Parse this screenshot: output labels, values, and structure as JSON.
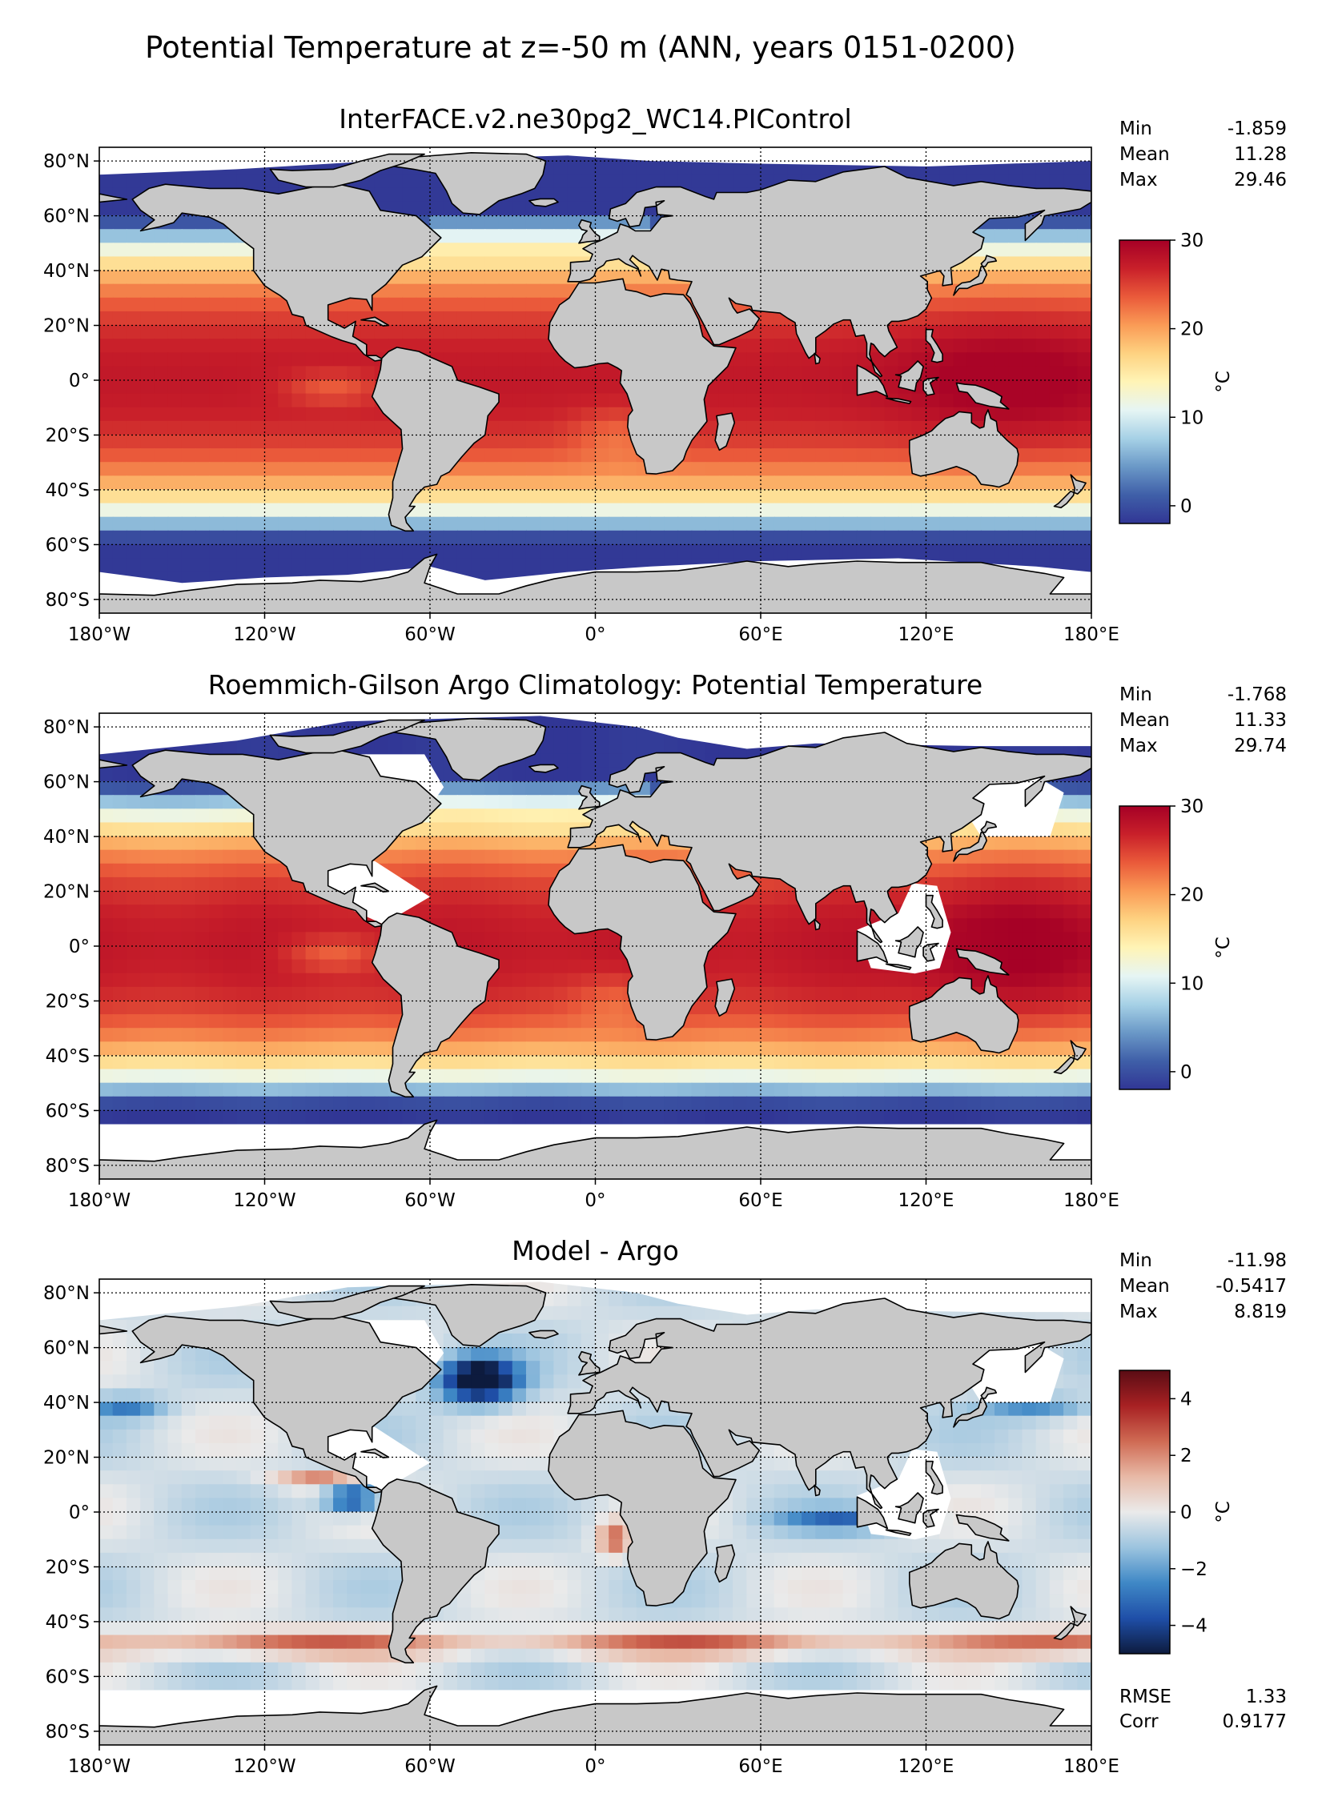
{
  "figure": {
    "title": "Potential Temperature at z=-50 m (ANN, years 0151-0200)"
  },
  "palettes": {
    "temperature": [
      "#313695",
      "#3f5fa8",
      "#6a98c7",
      "#a6d1e6",
      "#e6f5f4",
      "#fff4b6",
      "#fed281",
      "#fa9b56",
      "#ea5a3a",
      "#c9202a",
      "#a50026"
    ],
    "difference": [
      "#0d1b3e",
      "#1f4fa8",
      "#3f88c6",
      "#9cc4df",
      "#eaeaea",
      "#e8b9a6",
      "#cf6a53",
      "#a82123",
      "#5a0c14"
    ],
    "land": "#c8c8c8",
    "nodata": "#ffffff"
  },
  "chart_data": [
    {
      "type": "heatmap",
      "title": "InterFACE.v2.ne30pg2_WC14.PIControl",
      "x_ticks": [
        "180°W",
        "120°W",
        "60°W",
        "0°",
        "60°E",
        "120°E",
        "180°E"
      ],
      "y_ticks": [
        "80°N",
        "60°N",
        "40°N",
        "20°N",
        "0°",
        "20°S",
        "40°S",
        "60°S",
        "80°S"
      ],
      "xlim": [
        -180,
        180
      ],
      "ylim": [
        -85,
        85
      ],
      "stats": [
        {
          "label": "Min",
          "value": "-1.859"
        },
        {
          "label": "Mean",
          "value": "11.28"
        },
        {
          "label": "Max",
          "value": "29.46"
        }
      ],
      "colorbar": {
        "ticks": [
          "30",
          "20",
          "10",
          "0"
        ],
        "tick_values": [
          30,
          20,
          10,
          0
        ],
        "range": [
          -2,
          30
        ],
        "unit": "°C",
        "palette": "temperature"
      },
      "field": "model"
    },
    {
      "type": "heatmap",
      "title": "Roemmich-Gilson Argo Climatology: Potential Temperature",
      "x_ticks": [
        "180°W",
        "120°W",
        "60°W",
        "0°",
        "60°E",
        "120°E",
        "180°E"
      ],
      "y_ticks": [
        "80°N",
        "60°N",
        "40°N",
        "20°N",
        "0°",
        "20°S",
        "40°S",
        "60°S",
        "80°S"
      ],
      "xlim": [
        -180,
        180
      ],
      "ylim": [
        -85,
        85
      ],
      "stats": [
        {
          "label": "Min",
          "value": "-1.768"
        },
        {
          "label": "Mean",
          "value": "11.33"
        },
        {
          "label": "Max",
          "value": "29.74"
        }
      ],
      "colorbar": {
        "ticks": [
          "30",
          "20",
          "10",
          "0"
        ],
        "tick_values": [
          30,
          20,
          10,
          0
        ],
        "range": [
          -2,
          30
        ],
        "unit": "°C",
        "palette": "temperature"
      },
      "field": "obs"
    },
    {
      "type": "heatmap",
      "title": "Model - Argo",
      "x_ticks": [
        "180°W",
        "120°W",
        "60°W",
        "0°",
        "60°E",
        "120°E",
        "180°E"
      ],
      "y_ticks": [
        "80°N",
        "60°N",
        "40°N",
        "20°N",
        "0°",
        "20°S",
        "40°S",
        "60°S",
        "80°S"
      ],
      "xlim": [
        -180,
        180
      ],
      "ylim": [
        -85,
        85
      ],
      "stats": [
        {
          "label": "Min",
          "value": "-11.98"
        },
        {
          "label": "Mean",
          "value": "-0.5417"
        },
        {
          "label": "Max",
          "value": "8.819"
        }
      ],
      "extra_stats": [
        {
          "label": "RMSE",
          "value": "1.33"
        },
        {
          "label": "Corr",
          "value": "0.9177"
        }
      ],
      "colorbar": {
        "ticks": [
          "4",
          "2",
          "0",
          "−2",
          "−4"
        ],
        "tick_values": [
          4,
          2,
          0,
          -2,
          -4
        ],
        "range": [
          -5,
          5
        ],
        "unit": "°C",
        "palette": "difference"
      },
      "field": "diff"
    }
  ]
}
